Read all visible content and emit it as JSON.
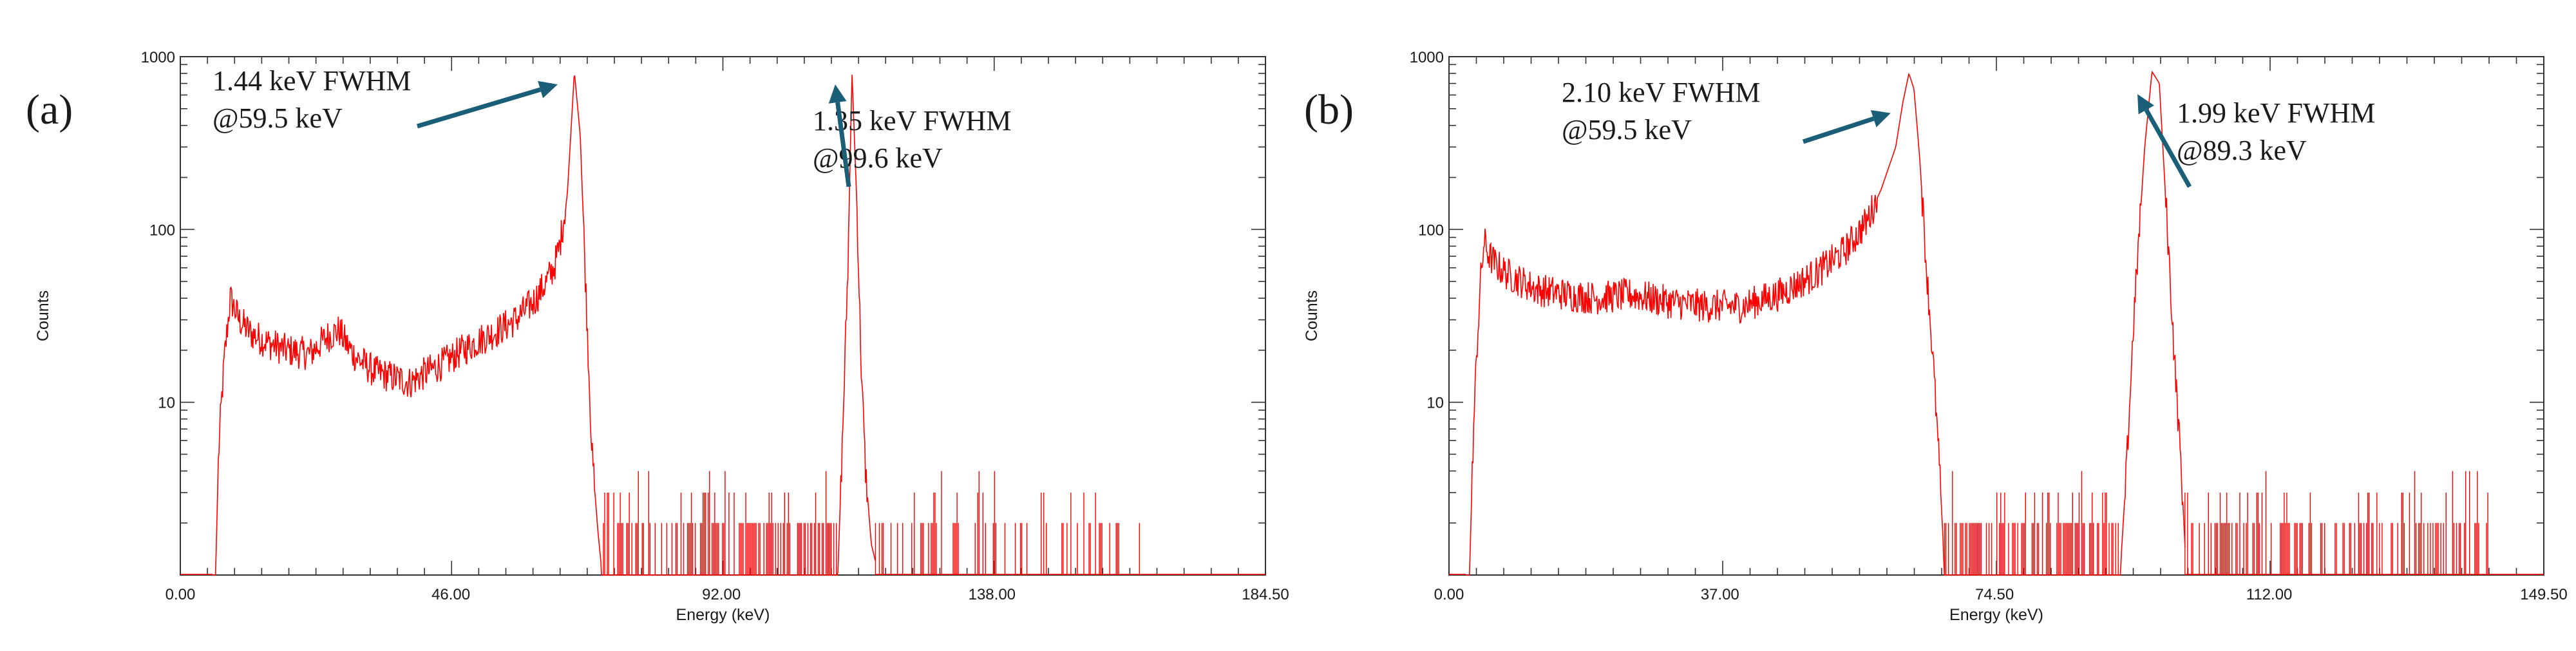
{
  "colors": {
    "trace": "#ff0000",
    "axis": "#333333",
    "arrow": "#1b5e78",
    "text": "#1a1a1a",
    "background": "#ffffff"
  },
  "chart_data": [
    {
      "type": "line",
      "panel_label": "(a)",
      "xlabel": "Energy (keV)",
      "ylabel": "Counts",
      "xlim": [
        0,
        184.5
      ],
      "ylim": [
        1,
        1000
      ],
      "y_scale": "log",
      "x_tick_labels": [
        {
          "value": 0,
          "label": "0.00"
        },
        {
          "value": 46,
          "label": "46.00"
        },
        {
          "value": 92,
          "label": "92.00"
        },
        {
          "value": 138,
          "label": "138.00"
        },
        {
          "value": 184.5,
          "label": "184.50"
        }
      ],
      "y_tick_labels": [
        {
          "value": 10,
          "label": "10"
        },
        {
          "value": 100,
          "label": "100"
        },
        {
          "value": 1000,
          "label": "1000"
        }
      ],
      "series": [
        {
          "x": [
            5.5,
            6.0,
            6.5,
            7.0,
            7.5,
            8.5,
            10.0,
            12.0,
            15.0,
            18.0,
            22.0,
            25.0,
            27.0,
            28.5,
            30.0,
            33.0,
            36.0,
            39.0,
            42.0,
            45.0,
            48.0,
            51.0,
            54.0,
            57.0,
            60.0,
            62.0,
            63.5,
            64.5,
            65.8,
            67.0,
            68.0,
            69.0,
            70.0,
            71.0,
            71.5,
            71.6,
            111.8,
            111.9,
            112.5,
            113.5,
            114.2,
            115.0,
            115.8,
            116.5,
            117.5,
            118.2,
            118.3
          ],
          "y": [
            1,
            1,
            5,
            10,
            18,
            40,
            30,
            25,
            22,
            20,
            19,
            24,
            26,
            21,
            18,
            15,
            14,
            13,
            15,
            17,
            20,
            23,
            26,
            30,
            38,
            48,
            60,
            80,
            160,
            820,
            350,
            40,
            5,
            1.8,
            1.2,
            1,
            1,
            1.3,
            5,
            60,
            820,
            150,
            15,
            4,
            1.5,
            1.2,
            1
          ]
        }
      ],
      "annotations": [
        {
          "line1": "1.44 keV FWHM",
          "line2": "@59.5 keV",
          "points_to": [
            67.0,
            820
          ]
        },
        {
          "line1": "1.35 keV FWHM",
          "line2": "@99.6 keV",
          "points_to": [
            114.2,
            820
          ]
        }
      ]
    },
    {
      "type": "line",
      "panel_label": "(b)",
      "xlabel": "Energy (keV)",
      "ylabel": "Counts",
      "xlim": [
        0,
        149.5
      ],
      "ylim": [
        1,
        1000
      ],
      "y_scale": "log",
      "x_tick_labels": [
        {
          "value": 0,
          "label": "0.00"
        },
        {
          "value": 37,
          "label": "37.00"
        },
        {
          "value": 74.5,
          "label": "74.50"
        },
        {
          "value": 112,
          "label": "112.00"
        },
        {
          "value": 149.5,
          "label": "149.50"
        }
      ],
      "y_tick_labels": [
        {
          "value": 10,
          "label": "10"
        },
        {
          "value": 100,
          "label": "100"
        },
        {
          "value": 1000,
          "label": "1000"
        }
      ],
      "series": [
        {
          "x": [
            2.3,
            2.8,
            3.3,
            3.8,
            4.3,
            4.8,
            5.5,
            6.5,
            8.0,
            12.0,
            16.0,
            20.0,
            25.0,
            30.0,
            35.0,
            40.0,
            45.0,
            50.0,
            54.0,
            57.0,
            59.0,
            61.0,
            62.0,
            62.8,
            63.5,
            64.3,
            65.2,
            66.2,
            67.0,
            67.5,
            67.6,
            91.7,
            91.8,
            92.5,
            93.5,
            95.0,
            96.0,
            97.0,
            98.0,
            99.0,
            100.0,
            100.5,
            100.6
          ],
          "y": [
            1,
            1,
            6,
            20,
            50,
            85,
            70,
            62,
            55,
            45,
            42,
            40,
            42,
            38,
            36,
            36,
            42,
            55,
            75,
            110,
            170,
            300,
            550,
            800,
            650,
            250,
            60,
            15,
            4,
            1.5,
            1,
            1,
            1.3,
            4,
            30,
            300,
            820,
            700,
            120,
            20,
            4,
            1.5,
            1
          ]
        }
      ],
      "annotations": [
        {
          "line1": "2.10 keV FWHM",
          "line2": "@59.5 keV",
          "points_to": [
            62.6,
            560
          ]
        },
        {
          "line1": "1.99 keV FWHM",
          "line2": "@89.3 keV",
          "points_to": [
            96.3,
            720
          ]
        }
      ]
    }
  ]
}
